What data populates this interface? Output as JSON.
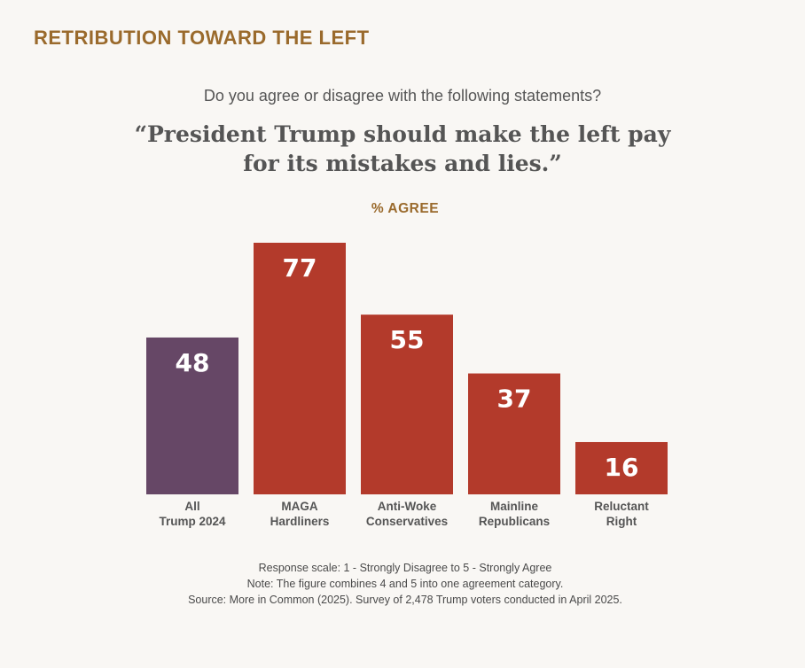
{
  "header": {
    "headline": "RETRIBUTION TOWARD THE LEFT",
    "question": "Do you agree or disagree with the following statements?",
    "statement": "“President Trump should make the left pay for its mistakes and lies.”"
  },
  "chart_data": {
    "type": "bar",
    "title": "% AGREE",
    "categories": [
      [
        "All",
        "Trump 2024"
      ],
      [
        "MAGA",
        "Hardliners"
      ],
      [
        "Anti-Woke",
        "Conservatives"
      ],
      [
        "Mainline",
        "Republicans"
      ],
      [
        "Reluctant",
        "Right"
      ]
    ],
    "values": [
      48,
      77,
      55,
      37,
      16
    ],
    "colors": [
      "#664766",
      "#b33a2b",
      "#b33a2b",
      "#b33a2b",
      "#b33a2b"
    ],
    "data_labels": true,
    "axis_visible": false,
    "grid": false
  },
  "footer": {
    "notes": [
      "Response scale: 1 - Strongly Disagree to 5 - Strongly Agree",
      "Note: The figure combines 4 and 5 into one agreement category.",
      "Source: More in Common (2025). Survey of 2,478 Trump voters conducted in April 2025."
    ]
  },
  "colors": {
    "background": "#f9f7f4",
    "accent": "#9a6a2c",
    "text": "#555555"
  }
}
